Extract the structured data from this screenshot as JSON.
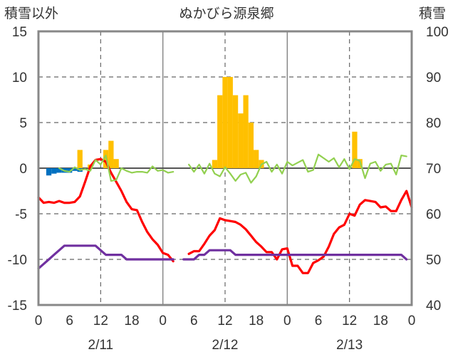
{
  "chart_data": {
    "type": "line",
    "title": "ぬかびら源泉郷",
    "left_axis_label": "積雪以外",
    "right_axis_label": "積雪",
    "left_ylim": [
      -15,
      15
    ],
    "left_yticks": [
      15,
      10,
      5,
      0,
      -5,
      -10,
      -15
    ],
    "right_ylim": [
      40,
      100
    ],
    "right_yticks": [
      100,
      90,
      80,
      70,
      60,
      50,
      40
    ],
    "x_tick_labels": [
      "0",
      "6",
      "12",
      "18",
      "0",
      "6",
      "12",
      "18",
      "0",
      "6",
      "12",
      "18",
      "0"
    ],
    "day_labels": [
      "2/11",
      "2/12",
      "2/13"
    ],
    "grid": true,
    "series": [
      {
        "color": "#ff0000",
        "axis": "left",
        "values": [
          -3.2,
          -3.8,
          -3.7,
          -3.8,
          -3.6,
          -3.8,
          -3.8,
          -3.7,
          -3.1,
          -1.5,
          0.2,
          0.9,
          1.0,
          0.7,
          -0.5,
          -1.5,
          -2.5,
          -3.7,
          -4.5,
          -4.6,
          -5.9,
          -7.0,
          -7.8,
          -8.4,
          -9.3,
          -9.5,
          -10.2,
          null,
          null,
          -9.4,
          -9.1,
          -9.1,
          -8.3,
          -7.4,
          -6.8,
          -5.5,
          -5.7,
          -5.8,
          -5.9,
          -6.2,
          -6.7,
          -7.4,
          -8.1,
          -8.6,
          -9.2,
          -9.2,
          -10.0,
          -8.9,
          -8.8,
          -10.7,
          -10.7,
          -11.5,
          -11.5,
          -10.4,
          -10.1,
          -9.7,
          -8.6,
          -7.2,
          -6.5,
          -6.2,
          -5.0,
          -5.2,
          -4.0,
          -3.5,
          -3.6,
          -3.7,
          -4.3,
          -4.2,
          -4.7,
          -4.7,
          -3.5,
          -2.5,
          -4.3
        ]
      },
      {
        "color": "#92d050",
        "axis": "left",
        "values": [
          null,
          null,
          null,
          null,
          0.0,
          -0.3,
          -0.4,
          0.1,
          -0.2,
          -0.1,
          -0.3,
          0.9,
          0.4,
          1.4,
          -1.4,
          -1.3,
          0.0,
          -0.3,
          -0.5,
          -0.4,
          -0.4,
          -0.5,
          0.2,
          -0.3,
          -0.2,
          -0.5,
          -0.4,
          null,
          null,
          0.4,
          -0.4,
          0.4,
          -0.6,
          0.5,
          -0.6,
          -0.9,
          0.1,
          -0.6,
          -1.4,
          -0.7,
          -0.5,
          -1.6,
          -0.9,
          0.4,
          0.7,
          -0.4,
          0.4,
          -0.6,
          0.7,
          0.3,
          0.6,
          0.9,
          -0.4,
          -0.2,
          1.5,
          1.1,
          0.7,
          1.1,
          0.1,
          1.0,
          -0.1,
          1.0,
          0.8,
          -1.1,
          0.5,
          0.7,
          -0.3,
          0.4,
          0.5,
          -0.7,
          1.4,
          1.3
        ]
      },
      {
        "color": "#7030a0",
        "axis": "right",
        "values": [
          48,
          49,
          50,
          51,
          52,
          53,
          53,
          53,
          53,
          53,
          53,
          53,
          52,
          51,
          51,
          51,
          51,
          50,
          50,
          50,
          50,
          50,
          50,
          50,
          50,
          50,
          50,
          null,
          50,
          50,
          50,
          51,
          51,
          52,
          52,
          52,
          52,
          52,
          51,
          51,
          51,
          51,
          51,
          51,
          51,
          51,
          51,
          51,
          51,
          51,
          51,
          51,
          51,
          51,
          51,
          51,
          51,
          51,
          51,
          51,
          51,
          51,
          51,
          51,
          51,
          51,
          51,
          51,
          51,
          51,
          51,
          50
        ]
      }
    ],
    "bars": [
      {
        "color": "#ffc000",
        "axis": "left",
        "values": [
          0,
          0,
          0,
          0,
          0,
          0,
          0,
          0,
          2.0,
          0,
          0.4,
          0,
          0,
          2.0,
          3.0,
          1.0,
          0,
          0,
          0,
          0,
          0,
          0,
          0,
          0,
          0,
          0,
          0,
          0,
          0,
          0,
          0,
          0,
          0,
          0,
          0.9,
          8.0,
          10.0,
          10.0,
          8.0,
          6.0,
          8.0,
          5.0,
          2.0,
          0.9,
          0,
          0,
          0,
          0,
          0,
          0,
          0,
          0,
          0,
          0,
          0,
          0,
          0,
          0,
          0,
          0,
          0,
          4.0,
          1.0,
          0,
          0,
          0,
          0,
          0,
          0,
          0,
          0,
          0
        ]
      },
      {
        "color": "#0070c0",
        "axis": "left",
        "values": [
          0,
          0,
          -0.8,
          -0.6,
          -0.5,
          -0.5,
          -0.5,
          -0.3,
          -0.4,
          0,
          0,
          0,
          0,
          0,
          0,
          0,
          0,
          0,
          0,
          0,
          0,
          0,
          0,
          0,
          0,
          0,
          0,
          0,
          0,
          0,
          0,
          0,
          0,
          0,
          0,
          0,
          0,
          0,
          0,
          0,
          0,
          0,
          0,
          0,
          0,
          0,
          0,
          0,
          0,
          0,
          0,
          0,
          0,
          0,
          0,
          0,
          0,
          0,
          0,
          0,
          0,
          0,
          0,
          0,
          0,
          0,
          0,
          0,
          0,
          0,
          0,
          0
        ]
      }
    ]
  }
}
